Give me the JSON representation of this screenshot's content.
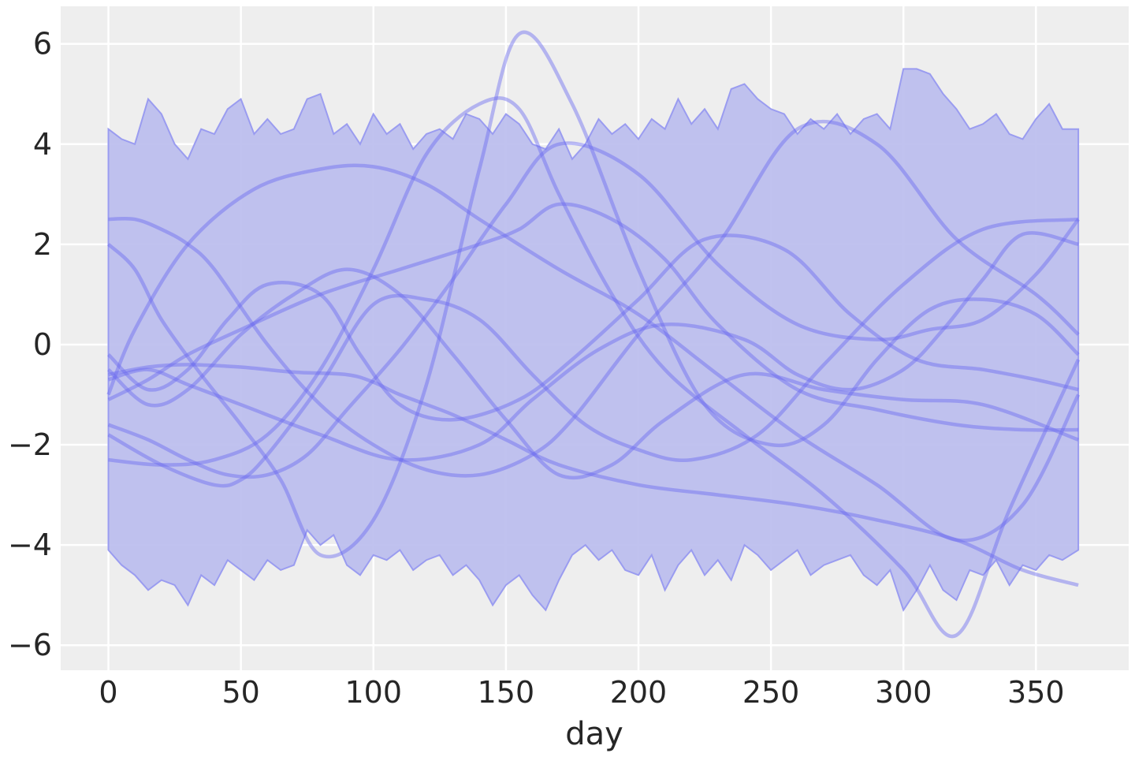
{
  "chart_data": {
    "type": "line",
    "title": "",
    "xlabel": "day",
    "ylabel": "",
    "xlim": [
      -18,
      385
    ],
    "ylim": [
      -6.5,
      6.75
    ],
    "xticks": [
      0,
      50,
      100,
      150,
      200,
      250,
      300,
      350
    ],
    "yticks": [
      6,
      4,
      2,
      0,
      -2,
      -4,
      -6
    ],
    "ytick_labels": [
      "6",
      "4",
      "2",
      "0",
      "−2",
      "−4",
      "−6"
    ],
    "grid": true,
    "legend": "none",
    "colors": {
      "background": "#eeeeee",
      "grid": "#ffffff",
      "band_fill": "#b9bbed",
      "band_edge": "#9a9cf0",
      "line": "#6a6af0"
    },
    "band": {
      "x": [
        0,
        5,
        10,
        15,
        20,
        25,
        30,
        35,
        40,
        45,
        50,
        55,
        60,
        65,
        70,
        75,
        80,
        85,
        90,
        95,
        100,
        105,
        110,
        115,
        120,
        125,
        130,
        135,
        140,
        145,
        150,
        155,
        160,
        165,
        170,
        175,
        180,
        185,
        190,
        195,
        200,
        205,
        210,
        215,
        220,
        225,
        230,
        235,
        240,
        245,
        250,
        255,
        260,
        265,
        270,
        275,
        280,
        285,
        290,
        295,
        300,
        305,
        310,
        315,
        320,
        325,
        330,
        335,
        340,
        345,
        350,
        355,
        360,
        366
      ],
      "upper": [
        4.3,
        4.1,
        4.0,
        4.9,
        4.6,
        4.0,
        3.7,
        4.3,
        4.2,
        4.7,
        4.9,
        4.2,
        4.5,
        4.2,
        4.3,
        4.9,
        5.0,
        4.2,
        4.4,
        4.0,
        4.6,
        4.2,
        4.4,
        3.9,
        4.2,
        4.3,
        4.1,
        4.6,
        4.5,
        4.2,
        4.6,
        4.4,
        4.0,
        3.9,
        4.3,
        3.7,
        4.0,
        4.5,
        4.2,
        4.4,
        4.1,
        4.5,
        4.3,
        4.9,
        4.4,
        4.7,
        4.3,
        5.1,
        5.2,
        4.9,
        4.7,
        4.6,
        4.2,
        4.5,
        4.3,
        4.6,
        4.2,
        4.5,
        4.6,
        4.3,
        5.5,
        5.5,
        5.4,
        5.0,
        4.7,
        4.3,
        4.4,
        4.6,
        4.2,
        4.1,
        4.5,
        4.8,
        4.3,
        4.3
      ],
      "lower": [
        -4.1,
        -4.4,
        -4.6,
        -4.9,
        -4.7,
        -4.8,
        -5.2,
        -4.6,
        -4.8,
        -4.3,
        -4.5,
        -4.7,
        -4.3,
        -4.5,
        -4.4,
        -3.7,
        -4.0,
        -3.8,
        -4.4,
        -4.6,
        -4.2,
        -4.3,
        -4.1,
        -4.5,
        -4.3,
        -4.2,
        -4.6,
        -4.4,
        -4.7,
        -5.2,
        -4.8,
        -4.6,
        -5.0,
        -5.3,
        -4.7,
        -4.2,
        -4.0,
        -4.3,
        -4.1,
        -4.5,
        -4.6,
        -4.2,
        -4.9,
        -4.4,
        -4.1,
        -4.6,
        -4.3,
        -4.7,
        -4.0,
        -4.2,
        -4.5,
        -4.3,
        -4.1,
        -4.6,
        -4.4,
        -4.3,
        -4.2,
        -4.6,
        -4.8,
        -4.5,
        -5.3,
        -4.9,
        -4.4,
        -4.9,
        -5.1,
        -4.5,
        -4.6,
        -4.3,
        -4.8,
        -4.4,
        -4.5,
        -4.2,
        -4.3,
        -4.1
      ]
    },
    "series": [
      {
        "x": [
          0,
          15,
          30,
          50,
          70,
          90,
          100,
          110,
          130,
          150,
          170,
          200,
          230,
          260,
          290,
          320,
          345,
          366
        ],
        "values": [
          -0.6,
          -0.45,
          -0.4,
          -0.45,
          -0.55,
          -0.6,
          -0.75,
          -1.0,
          -1.4,
          -1.9,
          -2.4,
          -2.8,
          -3.0,
          -3.2,
          -3.5,
          -3.9,
          -4.5,
          -4.8
        ]
      },
      {
        "x": [
          0,
          10,
          30,
          55,
          80,
          100,
          120,
          140,
          170,
          200,
          230,
          260,
          290,
          320,
          345,
          366
        ],
        "values": [
          -1.0,
          0.3,
          2.0,
          3.1,
          3.5,
          3.55,
          3.2,
          2.5,
          1.5,
          0.6,
          -0.6,
          -1.8,
          -2.8,
          -3.9,
          -3.2,
          -1.0
        ]
      },
      {
        "x": [
          0,
          10,
          20,
          30,
          40,
          60,
          80,
          100,
          120,
          140,
          160,
          175,
          200,
          230,
          260,
          290,
          320,
          350,
          366
        ],
        "values": [
          2.5,
          2.5,
          2.3,
          2.0,
          1.5,
          0.0,
          -1.2,
          -2.0,
          -2.5,
          -2.6,
          -2.2,
          -1.5,
          0.2,
          2.0,
          4.3,
          4.0,
          2.1,
          1.0,
          0.2
        ]
      },
      {
        "x": [
          0,
          15,
          30,
          50,
          80,
          110,
          140,
          155,
          170,
          190,
          210,
          230,
          260,
          290,
          320,
          345,
          366
        ],
        "values": [
          -1.1,
          -0.7,
          -0.2,
          0.3,
          1.0,
          1.5,
          2.0,
          2.3,
          2.8,
          2.5,
          1.7,
          0.4,
          -0.9,
          -1.3,
          -1.6,
          -1.7,
          -1.7
        ]
      },
      {
        "x": [
          0,
          15,
          30,
          50,
          70,
          90,
          110,
          130,
          150,
          170,
          190,
          210,
          240,
          270,
          300,
          330,
          366
        ],
        "values": [
          -0.5,
          -1.2,
          -0.9,
          0.2,
          1.0,
          1.5,
          1.0,
          -0.2,
          -1.5,
          -2.6,
          -2.4,
          -1.5,
          -0.6,
          -0.9,
          -1.1,
          -1.2,
          -1.9
        ]
      },
      {
        "x": [
          0,
          20,
          40,
          60,
          80,
          100,
          120,
          140,
          155,
          170,
          190,
          210,
          240,
          270,
          300,
          320,
          340,
          366
        ],
        "values": [
          -2.3,
          -2.4,
          -2.3,
          -1.8,
          -0.5,
          1.5,
          3.8,
          4.8,
          4.7,
          3.0,
          1.0,
          -0.5,
          -1.8,
          -3.0,
          -4.5,
          -5.8,
          -3.3,
          -0.3
        ]
      },
      {
        "x": [
          0,
          20,
          40,
          50,
          60,
          80,
          100,
          120,
          140,
          160,
          180,
          200,
          220,
          245,
          270,
          300,
          330,
          366
        ],
        "values": [
          -1.8,
          -2.4,
          -2.8,
          -2.7,
          -2.2,
          -0.8,
          0.8,
          0.9,
          0.5,
          -0.6,
          -1.6,
          -2.1,
          -2.3,
          -1.8,
          -0.4,
          1.2,
          2.3,
          2.5
        ]
      },
      {
        "x": [
          0,
          15,
          30,
          45,
          60,
          80,
          95,
          110,
          130,
          155,
          175,
          200,
          225,
          255,
          280,
          305,
          330,
          350,
          366
        ],
        "values": [
          -0.2,
          -0.9,
          -0.5,
          0.5,
          1.2,
          1.0,
          -0.2,
          -1.2,
          -1.5,
          -1.1,
          -0.3,
          0.9,
          2.1,
          1.9,
          0.6,
          -0.3,
          -0.5,
          -0.7,
          -0.9
        ]
      },
      {
        "x": [
          0,
          10,
          20,
          35,
          50,
          65,
          80,
          100,
          120,
          140,
          155,
          175,
          200,
          225,
          250,
          270,
          290,
          310,
          330,
          350,
          366
        ],
        "values": [
          2.0,
          1.5,
          0.5,
          -0.6,
          -1.6,
          -2.7,
          -4.2,
          -3.5,
          -0.8,
          3.5,
          6.2,
          4.8,
          1.5,
          -1.2,
          -2.0,
          -1.6,
          -0.3,
          0.7,
          0.9,
          0.6,
          -0.2
        ]
      },
      {
        "x": [
          0,
          15,
          30,
          45,
          60,
          75,
          90,
          110,
          130,
          150,
          170,
          200,
          230,
          260,
          290,
          310,
          330,
          350,
          366
        ],
        "values": [
          -1.6,
          -1.9,
          -2.3,
          -2.6,
          -2.6,
          -2.2,
          -1.3,
          -0.1,
          1.3,
          2.8,
          4.0,
          3.4,
          1.6,
          0.4,
          0.1,
          0.3,
          0.5,
          1.4,
          2.5
        ]
      },
      {
        "x": [
          0,
          15,
          30,
          50,
          80,
          110,
          140,
          160,
          185,
          210,
          240,
          260,
          280,
          300,
          315,
          330,
          345,
          366
        ],
        "values": [
          -0.7,
          -0.5,
          -0.8,
          -1.2,
          -1.8,
          -2.3,
          -2.0,
          -1.1,
          -0.1,
          0.4,
          0.1,
          -0.6,
          -0.9,
          -0.5,
          0.3,
          1.3,
          2.2,
          2.0
        ]
      }
    ]
  }
}
